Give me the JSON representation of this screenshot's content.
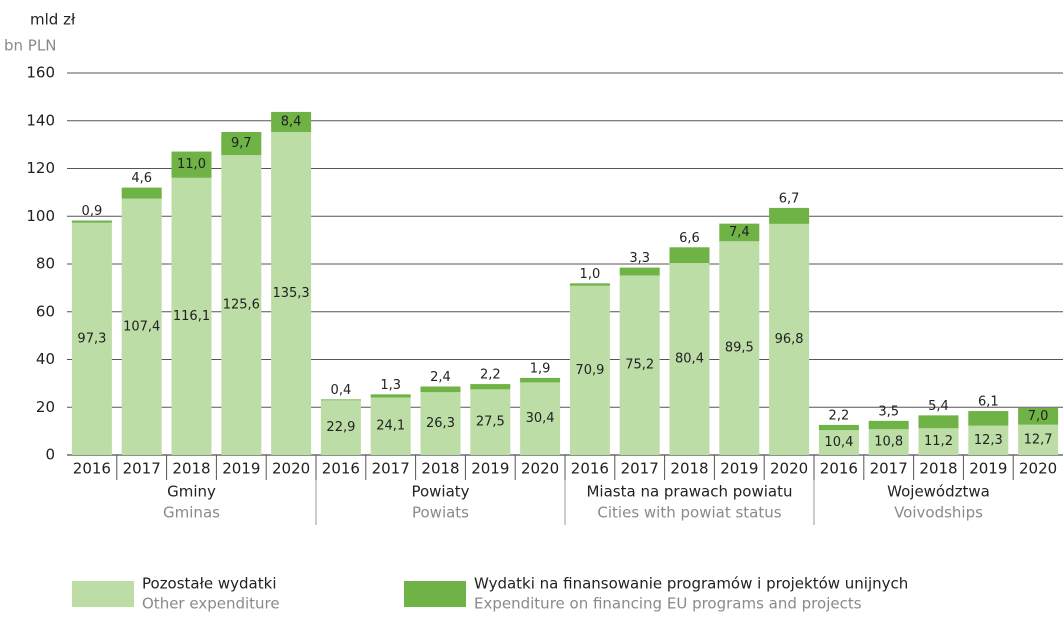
{
  "chart_data": {
    "type": "stacked-bar",
    "y_label": "mld zł",
    "y_label_en": "bn PLN",
    "categories": [
      "2016",
      "2017",
      "2018",
      "2019",
      "2020",
      "2016",
      "2017",
      "2018",
      "2019",
      "2020",
      "2016",
      "2017",
      "2018",
      "2019",
      "2020",
      "2016",
      "2017",
      "2018",
      "2019",
      "2020"
    ],
    "groups": [
      {
        "name": "Gminy",
        "name_en": "Gminas"
      },
      {
        "name": "Powiaty",
        "name_en": "Powiats"
      },
      {
        "name": "Miasta na prawach powiatu",
        "name_en": "Cities with powiat status"
      },
      {
        "name": "Województwa",
        "name_en": "Voivodships"
      }
    ],
    "series": [
      {
        "name": "Pozostałe wydatki",
        "name_en": "Other expenditure",
        "color": "#bddda7",
        "values": [
          97.3,
          107.4,
          116.1,
          125.6,
          135.3,
          22.9,
          24.1,
          26.3,
          27.5,
          30.4,
          70.9,
          75.2,
          80.4,
          89.5,
          96.8,
          10.4,
          10.8,
          11.2,
          12.3,
          12.7
        ],
        "value_labels": [
          "97,3",
          "107,4",
          "116,1",
          "125,6",
          "135,3",
          "22,9",
          "24,1",
          "26,3",
          "27,5",
          "30,4",
          "70,9",
          "75,2",
          "80,4",
          "89,5",
          "96,8",
          "10,4",
          "10,8",
          "11,2",
          "12,3",
          "12,7"
        ]
      },
      {
        "name": "Wydatki na finansowanie programów i projektów unijnych",
        "name_en": "Expenditure on financing EU programs and projects",
        "color": "#6fb246",
        "values": [
          0.9,
          4.6,
          11.0,
          9.7,
          8.4,
          0.4,
          1.3,
          2.4,
          2.2,
          1.9,
          1.0,
          3.3,
          6.6,
          7.4,
          6.7,
          2.2,
          3.5,
          5.4,
          6.1,
          7.0
        ],
        "value_labels": [
          "0,9",
          "4,6",
          "11,0",
          "9,7",
          "8,4",
          "0,4",
          "1,3",
          "2,4",
          "2,2",
          "1,9",
          "1,0",
          "3,3",
          "6,6",
          "7,4",
          "6,7",
          "2,2",
          "3,5",
          "5,4",
          "6,1",
          "7,0"
        ]
      }
    ],
    "ylim": [
      0,
      160
    ],
    "yticks": [
      0,
      20,
      40,
      60,
      80,
      100,
      120,
      140,
      160
    ],
    "grid": true
  }
}
